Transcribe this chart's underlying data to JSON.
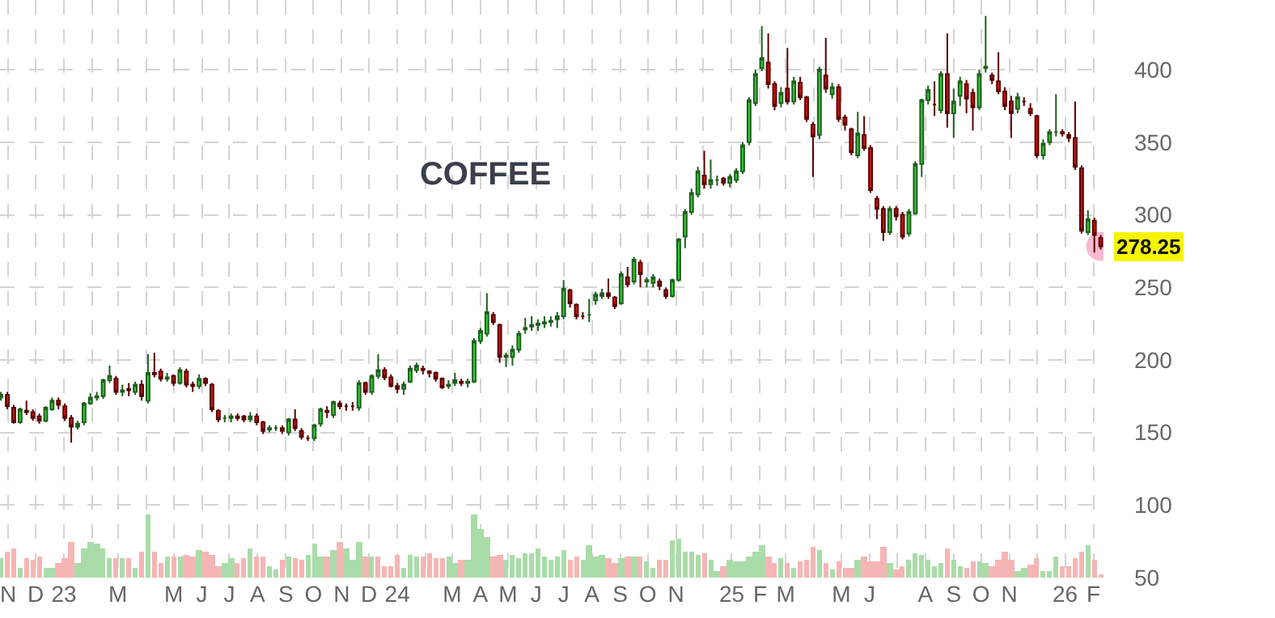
{
  "chart_data": {
    "type": "candlestick",
    "title": "COFFEE",
    "x": [
      "2022-10-24",
      "2022-10-31",
      "2022-11-07",
      "2022-11-14",
      "2022-11-21",
      "2022-11-28",
      "2022-12-05",
      "2022-12-12",
      "2022-12-19",
      "2022-12-26",
      "2023-01-02",
      "2023-01-09",
      "2023-01-16",
      "2023-01-23",
      "2023-01-30",
      "2023-02-06",
      "2023-02-13",
      "2023-02-20",
      "2023-02-27",
      "2023-03-06",
      "2023-03-13",
      "2023-03-20",
      "2023-03-27",
      "2023-04-03",
      "2023-04-10",
      "2023-04-17",
      "2023-04-24",
      "2023-05-01",
      "2023-05-08",
      "2023-05-15",
      "2023-05-22",
      "2023-05-29",
      "2023-06-05",
      "2023-06-12",
      "2023-06-19",
      "2023-06-26",
      "2023-07-03",
      "2023-07-10",
      "2023-07-17",
      "2023-07-24",
      "2023-07-31",
      "2023-08-07",
      "2023-08-14",
      "2023-08-21",
      "2023-08-28",
      "2023-09-04",
      "2023-09-11",
      "2023-09-18",
      "2023-09-25",
      "2023-10-02",
      "2023-10-09",
      "2023-10-16",
      "2023-10-23",
      "2023-10-30",
      "2023-11-06",
      "2023-11-13",
      "2023-11-20",
      "2023-11-27",
      "2023-12-04",
      "2023-12-11",
      "2023-12-18",
      "2023-12-25",
      "2024-01-01",
      "2024-01-08",
      "2024-01-15",
      "2024-01-22",
      "2024-01-29",
      "2024-02-05",
      "2024-02-12",
      "2024-02-19",
      "2024-02-26",
      "2024-03-04",
      "2024-03-11",
      "2024-03-18",
      "2024-03-25",
      "2024-04-01",
      "2024-04-08",
      "2024-04-15",
      "2024-04-22",
      "2024-04-29",
      "2024-05-06",
      "2024-05-13",
      "2024-05-20",
      "2024-05-27",
      "2024-06-03",
      "2024-06-10",
      "2024-06-17",
      "2024-06-24",
      "2024-07-01",
      "2024-07-08",
      "2024-07-15",
      "2024-07-22",
      "2024-07-29",
      "2024-08-05",
      "2024-08-12",
      "2024-08-19",
      "2024-08-26",
      "2024-09-02",
      "2024-09-09",
      "2024-09-16",
      "2024-09-23",
      "2024-09-30",
      "2024-10-07",
      "2024-10-14",
      "2024-10-21",
      "2024-10-28",
      "2024-11-04",
      "2024-11-11",
      "2024-11-18",
      "2024-11-25",
      "2024-12-02",
      "2024-12-09",
      "2024-12-16",
      "2024-12-23",
      "2024-12-30",
      "2025-01-06",
      "2025-01-13",
      "2025-01-20",
      "2025-01-27",
      "2025-02-03",
      "2025-02-10",
      "2025-02-17",
      "2025-02-24",
      "2025-03-03",
      "2025-03-10",
      "2025-03-17",
      "2025-03-24",
      "2025-03-31",
      "2025-04-07",
      "2025-04-14",
      "2025-04-21",
      "2025-04-28",
      "2025-05-05",
      "2025-05-12",
      "2025-05-19",
      "2025-05-26",
      "2025-06-02",
      "2025-06-09",
      "2025-06-16",
      "2025-06-23",
      "2025-06-30",
      "2025-07-07",
      "2025-07-14",
      "2025-07-21",
      "2025-07-28",
      "2025-08-04",
      "2025-08-11",
      "2025-08-18",
      "2025-08-25",
      "2025-09-01",
      "2025-09-08",
      "2025-09-15",
      "2025-09-22",
      "2025-09-29",
      "2025-10-06",
      "2025-10-13",
      "2025-10-20",
      "2025-10-27",
      "2025-11-03",
      "2025-11-10",
      "2025-11-17",
      "2025-11-24",
      "2025-12-01",
      "2025-12-08",
      "2025-12-15",
      "2025-12-22",
      "2025-12-29",
      "2026-01-05",
      "2026-01-12",
      "2026-01-19",
      "2026-01-26",
      "2026-02-02",
      "2026-02-09"
    ],
    "ohlc": [
      [
        174,
        178,
        172,
        176
      ],
      [
        176,
        178,
        166,
        168
      ],
      [
        167,
        169,
        156,
        157
      ],
      [
        157,
        167,
        156,
        166
      ],
      [
        165,
        172,
        162,
        164
      ],
      [
        164,
        166,
        158,
        160
      ],
      [
        161,
        163,
        156,
        158
      ],
      [
        158,
        168,
        157,
        167
      ],
      [
        166,
        174,
        165,
        172
      ],
      [
        172,
        174,
        166,
        169
      ],
      [
        168,
        170,
        158,
        160
      ],
      [
        160,
        162,
        143,
        154
      ],
      [
        154,
        158,
        152,
        156
      ],
      [
        157,
        171,
        155,
        170
      ],
      [
        170,
        177,
        169,
        174
      ],
      [
        174,
        178,
        172,
        175
      ],
      [
        175,
        187,
        173,
        186
      ],
      [
        186,
        196,
        184,
        189
      ],
      [
        187,
        189,
        176,
        178
      ],
      [
        178,
        183,
        175,
        179
      ],
      [
        180,
        184,
        175,
        179
      ],
      [
        178,
        185,
        176,
        183
      ],
      [
        183,
        186,
        172,
        175
      ],
      [
        172,
        204,
        170,
        191
      ],
      [
        191,
        205,
        188,
        190
      ],
      [
        192,
        194,
        185,
        187
      ],
      [
        187,
        191,
        185,
        188
      ],
      [
        189,
        190,
        182,
        184
      ],
      [
        184,
        195,
        183,
        193
      ],
      [
        192,
        194,
        181,
        183
      ],
      [
        183,
        185,
        178,
        182
      ],
      [
        182,
        190,
        180,
        187
      ],
      [
        187,
        188,
        182,
        184
      ],
      [
        183,
        184,
        164,
        166
      ],
      [
        165,
        166,
        157,
        159
      ],
      [
        160,
        162,
        157,
        160
      ],
      [
        160,
        163,
        157,
        161
      ],
      [
        161,
        163,
        158,
        160
      ],
      [
        161,
        162,
        157,
        159
      ],
      [
        159,
        164,
        157,
        161
      ],
      [
        161,
        163,
        155,
        157
      ],
      [
        157,
        158,
        149,
        151
      ],
      [
        152,
        155,
        150,
        153
      ],
      [
        153,
        155,
        151,
        153
      ],
      [
        153,
        155,
        149,
        151
      ],
      [
        150,
        160,
        148,
        159
      ],
      [
        159,
        166,
        151,
        153
      ],
      [
        151,
        153,
        145,
        147
      ],
      [
        146,
        148,
        144,
        146
      ],
      [
        146,
        156,
        144,
        155
      ],
      [
        156,
        167,
        154,
        166
      ],
      [
        165,
        168,
        160,
        164
      ],
      [
        162,
        172,
        160,
        171
      ],
      [
        170,
        172,
        166,
        168
      ],
      [
        168,
        170,
        165,
        168
      ],
      [
        168,
        171,
        165,
        168
      ],
      [
        167,
        186,
        165,
        184
      ],
      [
        184,
        185,
        176,
        178
      ],
      [
        178,
        190,
        176,
        189
      ],
      [
        189,
        204,
        187,
        193
      ],
      [
        193,
        195,
        186,
        188
      ],
      [
        188,
        190,
        181,
        182
      ],
      [
        182,
        184,
        177,
        180
      ],
      [
        180,
        185,
        176,
        183
      ],
      [
        185,
        196,
        184,
        194
      ],
      [
        193,
        198,
        191,
        196
      ],
      [
        194,
        196,
        190,
        193
      ],
      [
        192,
        193,
        188,
        191
      ],
      [
        191,
        192,
        185,
        187
      ],
      [
        187,
        188,
        180,
        181
      ],
      [
        182,
        186,
        180,
        183
      ],
      [
        184,
        191,
        182,
        186
      ],
      [
        185,
        187,
        182,
        184
      ],
      [
        184,
        187,
        181,
        185
      ],
      [
        185,
        215,
        184,
        213
      ],
      [
        213,
        222,
        211,
        220
      ],
      [
        218,
        246,
        216,
        233
      ],
      [
        231,
        233,
        224,
        226
      ],
      [
        224,
        225,
        198,
        202
      ],
      [
        202,
        205,
        195,
        203
      ],
      [
        202,
        210,
        196,
        207
      ],
      [
        207,
        220,
        205,
        218
      ],
      [
        221,
        229,
        218,
        222
      ],
      [
        223,
        230,
        220,
        224
      ],
      [
        224,
        228,
        220,
        225
      ],
      [
        225,
        230,
        222,
        226
      ],
      [
        226,
        230,
        223,
        227
      ],
      [
        228,
        233,
        222,
        230
      ],
      [
        230,
        255,
        228,
        249
      ],
      [
        248,
        249,
        236,
        239
      ],
      [
        238,
        239,
        228,
        230
      ],
      [
        230,
        233,
        228,
        230
      ],
      [
        231,
        242,
        226,
        231
      ],
      [
        241,
        247,
        238,
        245
      ],
      [
        244,
        249,
        242,
        246
      ],
      [
        246,
        256,
        242,
        244
      ],
      [
        243,
        244,
        235,
        237
      ],
      [
        239,
        261,
        238,
        259
      ],
      [
        257,
        264,
        250,
        252
      ],
      [
        254,
        271,
        252,
        269
      ],
      [
        267,
        269,
        250,
        259
      ],
      [
        254,
        257,
        250,
        255
      ],
      [
        253,
        259,
        250,
        257
      ],
      [
        254,
        256,
        248,
        251
      ],
      [
        248,
        250,
        242,
        244
      ],
      [
        244,
        256,
        243,
        255
      ],
      [
        255,
        284,
        254,
        283
      ],
      [
        285,
        304,
        277,
        302
      ],
      [
        302,
        318,
        300,
        315
      ],
      [
        314,
        333,
        312,
        330
      ],
      [
        327,
        344,
        318,
        321
      ],
      [
        321,
        338,
        318,
        324
      ],
      [
        324,
        327,
        320,
        324
      ],
      [
        325,
        326,
        320,
        322
      ],
      [
        322,
        328,
        319,
        326
      ],
      [
        324,
        332,
        322,
        330
      ],
      [
        330,
        350,
        328,
        348
      ],
      [
        350,
        381,
        348,
        379
      ],
      [
        377,
        400,
        375,
        397
      ],
      [
        401,
        430,
        399,
        408
      ],
      [
        405,
        425,
        387,
        390
      ],
      [
        390,
        392,
        372,
        375
      ],
      [
        377,
        388,
        374,
        384
      ],
      [
        387,
        415,
        376,
        378
      ],
      [
        378,
        395,
        376,
        392
      ],
      [
        391,
        395,
        379,
        381
      ],
      [
        381,
        382,
        364,
        366
      ],
      [
        362,
        364,
        326,
        354
      ],
      [
        355,
        402,
        352,
        400
      ],
      [
        396,
        422,
        384,
        387
      ],
      [
        383,
        391,
        380,
        388
      ],
      [
        388,
        390,
        364,
        366
      ],
      [
        367,
        369,
        358,
        362
      ],
      [
        359,
        360,
        341,
        343
      ],
      [
        341,
        371,
        339,
        356
      ],
      [
        355,
        368,
        344,
        346
      ],
      [
        346,
        348,
        315,
        317
      ],
      [
        311,
        313,
        297,
        304
      ],
      [
        304,
        306,
        282,
        288
      ],
      [
        288,
        306,
        286,
        304
      ],
      [
        304,
        306,
        296,
        299
      ],
      [
        300,
        302,
        283,
        285
      ],
      [
        287,
        304,
        285,
        302
      ],
      [
        301,
        337,
        300,
        335
      ],
      [
        335,
        380,
        326,
        379
      ],
      [
        379,
        389,
        376,
        386
      ],
      [
        376,
        392,
        368,
        376
      ],
      [
        372,
        399,
        370,
        397
      ],
      [
        397,
        425,
        360,
        370
      ],
      [
        370,
        387,
        353,
        378
      ],
      [
        382,
        395,
        375,
        392
      ],
      [
        390,
        393,
        370,
        380
      ],
      [
        384,
        387,
        358,
        374
      ],
      [
        374,
        400,
        372,
        397
      ],
      [
        401,
        437,
        398,
        402
      ],
      [
        396,
        398,
        390,
        393
      ],
      [
        392,
        412,
        383,
        385
      ],
      [
        385,
        388,
        372,
        375
      ],
      [
        378,
        382,
        353,
        370
      ],
      [
        373,
        384,
        370,
        381
      ],
      [
        378,
        381,
        375,
        378
      ],
      [
        373,
        377,
        368,
        370
      ],
      [
        368,
        369,
        339,
        341
      ],
      [
        341,
        352,
        338,
        349
      ],
      [
        350,
        359,
        348,
        357
      ],
      [
        357,
        383,
        354,
        357
      ],
      [
        357,
        359,
        354,
        356
      ],
      [
        355,
        357,
        350,
        353
      ],
      [
        353,
        378,
        331,
        333
      ],
      [
        332,
        334,
        287,
        289
      ],
      [
        288,
        303,
        286,
        297
      ],
      [
        296,
        298,
        274,
        286
      ],
      [
        284,
        286,
        276,
        278.25
      ]
    ],
    "series": [
      {
        "type": "bar",
        "values": [
          13,
          18,
          20,
          7,
          13,
          12,
          15,
          7,
          7,
          10,
          13,
          25,
          10,
          20,
          25,
          23,
          20,
          13,
          13,
          13,
          13,
          7,
          18,
          43,
          18,
          10,
          14,
          14,
          14,
          16,
          14,
          19,
          18,
          16,
          8,
          10,
          13,
          10,
          13,
          20,
          14,
          14,
          8,
          6,
          12,
          14,
          13,
          12,
          16,
          23,
          14,
          14,
          19,
          24,
          20,
          12,
          24,
          14,
          14,
          14,
          8,
          8,
          16,
          7,
          16,
          14,
          14,
          17,
          13,
          13,
          15,
          10,
          12,
          12,
          44,
          34,
          28,
          14,
          16,
          12,
          16,
          13,
          17,
          17,
          20,
          14,
          12,
          14,
          19,
          12,
          14,
          12,
          22,
          15,
          16,
          13,
          10,
          13,
          14,
          15,
          14,
          11,
          7,
          12,
          12,
          26,
          27,
          18,
          18,
          16,
          17,
          12,
          5,
          8,
          12,
          11,
          11,
          15,
          18,
          22,
          14,
          10,
          13,
          10,
          7,
          11,
          12,
          21,
          19,
          10,
          6,
          11,
          7,
          7,
          12,
          14,
          11,
          11,
          21,
          10,
          6,
          8,
          12,
          17,
          16,
          12,
          8,
          10,
          20,
          12,
          8,
          7,
          11,
          11,
          10,
          8,
          12,
          18,
          12,
          5,
          7,
          9,
          13,
          5,
          5,
          14,
          8,
          8,
          13,
          18,
          22,
          12,
          2
        ],
        "base": [
          50,
          50,
          50,
          50,
          50,
          50,
          50,
          50,
          50,
          50,
          50,
          50,
          50,
          50,
          50,
          50,
          50,
          50,
          50,
          50,
          50,
          50,
          50,
          50,
          50,
          50,
          50,
          50,
          50,
          50,
          50,
          50,
          50,
          50,
          50,
          50,
          50,
          50,
          50,
          50,
          50,
          50,
          50,
          50,
          50,
          50,
          50,
          50,
          50,
          50,
          50,
          50,
          50,
          50,
          50,
          50,
          50,
          50,
          50,
          50,
          50,
          50,
          50,
          50,
          50,
          50,
          50,
          50,
          50,
          50,
          50,
          50,
          50,
          50,
          50,
          50,
          50,
          50,
          50,
          50,
          50,
          50,
          50,
          50,
          50,
          50,
          50,
          50,
          50,
          50,
          50,
          50,
          50,
          50,
          50,
          50,
          50,
          50,
          50,
          50,
          50,
          50,
          50,
          50,
          50,
          50,
          50,
          50,
          50,
          50,
          50,
          50,
          50,
          50,
          50,
          50,
          50,
          50,
          50,
          50,
          50,
          50,
          50,
          50,
          50,
          50,
          50,
          50,
          50,
          50,
          50,
          50,
          50,
          50,
          50,
          50,
          50,
          50,
          50,
          50,
          50,
          50,
          50,
          50,
          50,
          50,
          50,
          50,
          50,
          50,
          50,
          50,
          50,
          50,
          50,
          50,
          50,
          50,
          50,
          50,
          50,
          50,
          50,
          50,
          50,
          50,
          50,
          50,
          50,
          50,
          50,
          50,
          50
        ],
        "colors": [
          "#a9dca9",
          "#f6b5b5",
          "#f6b5b5",
          "#a9dca9",
          "#f6b5b5",
          "#f6b5b5",
          "#f6b5b5",
          "#a9dca9",
          "#a9dca9",
          "#f6b5b5",
          "#f6b5b5",
          "#f6b5b5",
          "#a9dca9",
          "#a9dca9",
          "#a9dca9",
          "#a9dca9",
          "#a9dca9",
          "#a9dca9",
          "#f6b5b5",
          "#a9dca9",
          "#f6b5b5",
          "#a9dca9",
          "#f6b5b5",
          "#a9dca9",
          "#f6b5b5",
          "#f6b5b5",
          "#a9dca9",
          "#f6b5b5",
          "#a9dca9",
          "#f6b5b5",
          "#f6b5b5",
          "#a9dca9",
          "#f6b5b5",
          "#f6b5b5",
          "#f6b5b5",
          "#a9dca9",
          "#a9dca9",
          "#f6b5b5",
          "#f6b5b5",
          "#a9dca9",
          "#f6b5b5",
          "#f6b5b5",
          "#a9dca9",
          "#a9dca9",
          "#f6b5b5",
          "#a9dca9",
          "#f6b5b5",
          "#f6b5b5",
          "#a9dca9",
          "#a9dca9",
          "#a9dca9",
          "#f6b5b5",
          "#a9dca9",
          "#f6b5b5",
          "#a9dca9",
          "#a9dca9",
          "#a9dca9",
          "#f6b5b5",
          "#a9dca9",
          "#f6b5b5",
          "#f6b5b5",
          "#f6b5b5",
          "#f6b5b5",
          "#a9dca9",
          "#a9dca9",
          "#a9dca9",
          "#f6b5b5",
          "#f6b5b5",
          "#f6b5b5",
          "#f6b5b5",
          "#a9dca9",
          "#a9dca9",
          "#f6b5b5",
          "#a9dca9",
          "#a9dca9",
          "#a9dca9",
          "#a9dca9",
          "#f6b5b5",
          "#f6b5b5",
          "#a9dca9",
          "#a9dca9",
          "#a9dca9",
          "#a9dca9",
          "#a9dca9",
          "#a9dca9",
          "#a9dca9",
          "#a9dca9",
          "#a9dca9",
          "#a9dca9",
          "#f6b5b5",
          "#f6b5b5",
          "#a9dca9",
          "#a9dca9",
          "#a9dca9",
          "#a9dca9",
          "#f6b5b5",
          "#f6b5b5",
          "#a9dca9",
          "#f6b5b5",
          "#a9dca9",
          "#f6b5b5",
          "#a9dca9",
          "#a9dca9",
          "#f6b5b5",
          "#f6b5b5",
          "#a9dca9",
          "#a9dca9",
          "#a9dca9",
          "#a9dca9",
          "#a9dca9",
          "#f6b5b5",
          "#a9dca9",
          "#a9dca9",
          "#f6b5b5",
          "#a9dca9",
          "#a9dca9",
          "#a9dca9",
          "#a9dca9",
          "#a9dca9",
          "#a9dca9",
          "#f6b5b5",
          "#f6b5b5",
          "#a9dca9",
          "#f6b5b5",
          "#a9dca9",
          "#f6b5b5",
          "#f6b5b5",
          "#f6b5b5",
          "#a9dca9",
          "#f6b5b5",
          "#a9dca9",
          "#f6b5b5",
          "#f6b5b5",
          "#f6b5b5",
          "#a9dca9",
          "#f6b5b5",
          "#f6b5b5",
          "#f6b5b5",
          "#f6b5b5",
          "#a9dca9",
          "#f6b5b5",
          "#f6b5b5",
          "#a9dca9",
          "#a9dca9",
          "#a9dca9",
          "#a9dca9",
          "#a9dca9",
          "#a9dca9",
          "#f6b5b5",
          "#a9dca9",
          "#a9dca9",
          "#f6b5b5",
          "#f6b5b5",
          "#a9dca9",
          "#a9dca9",
          "#f6b5b5",
          "#f6b5b5",
          "#f6b5b5",
          "#f6b5b5",
          "#a9dca9",
          "#a9dca9",
          "#f6b5b5",
          "#f6b5b5",
          "#a9dca9",
          "#a9dca9",
          "#a9dca9",
          "#f6b5b5",
          "#f6b5b5",
          "#f6b5b5",
          "#f6b5b5",
          "#a9dca9",
          "#f6b5b5",
          "#f6b5b5"
        ]
      }
    ],
    "xlim": [
      "2022-10-23",
      "2026-02-12"
    ],
    "ylim": [
      50,
      448
    ],
    "xticks": [
      {
        "value": "2022-11-01",
        "label": "N"
      },
      {
        "value": "2022-12-01",
        "label": "D"
      },
      {
        "value": "2023-01-01",
        "label": "23"
      },
      {
        "value": "2023-02-01",
        "label": null
      },
      {
        "value": "2023-03-01",
        "label": "M"
      },
      {
        "value": "2023-04-01",
        "label": null
      },
      {
        "value": "2023-05-01",
        "label": "M"
      },
      {
        "value": "2023-06-01",
        "label": "J"
      },
      {
        "value": "2023-07-01",
        "label": "J"
      },
      {
        "value": "2023-08-01",
        "label": "A"
      },
      {
        "value": "2023-09-01",
        "label": "S"
      },
      {
        "value": "2023-10-01",
        "label": "O"
      },
      {
        "value": "2023-11-01",
        "label": "N"
      },
      {
        "value": "2023-12-01",
        "label": "D"
      },
      {
        "value": "2024-01-01",
        "label": "24"
      },
      {
        "value": "2024-02-01",
        "label": null
      },
      {
        "value": "2024-03-01",
        "label": "M"
      },
      {
        "value": "2024-04-01",
        "label": "A"
      },
      {
        "value": "2024-05-01",
        "label": "M"
      },
      {
        "value": "2024-06-01",
        "label": "J"
      },
      {
        "value": "2024-07-01",
        "label": "J"
      },
      {
        "value": "2024-08-01",
        "label": "A"
      },
      {
        "value": "2024-09-01",
        "label": "S"
      },
      {
        "value": "2024-10-01",
        "label": "O"
      },
      {
        "value": "2024-11-01",
        "label": "N"
      },
      {
        "value": "2024-12-01",
        "label": null
      },
      {
        "value": "2025-01-01",
        "label": "25"
      },
      {
        "value": "2025-02-01",
        "label": "F"
      },
      {
        "value": "2025-03-01",
        "label": "M"
      },
      {
        "value": "2025-04-01",
        "label": null
      },
      {
        "value": "2025-05-01",
        "label": "M"
      },
      {
        "value": "2025-06-01",
        "label": "J"
      },
      {
        "value": "2025-07-01",
        "label": null
      },
      {
        "value": "2025-08-01",
        "label": "A"
      },
      {
        "value": "2025-09-01",
        "label": "S"
      },
      {
        "value": "2025-10-01",
        "label": "O"
      },
      {
        "value": "2025-11-01",
        "label": "N"
      },
      {
        "value": "2025-12-01",
        "label": null
      },
      {
        "value": "2026-01-01",
        "label": "26"
      },
      {
        "value": "2026-02-01",
        "label": "F"
      }
    ],
    "yticks": [
      50,
      100,
      150,
      200,
      250,
      300,
      350,
      400
    ],
    "grid": true,
    "annotations": [
      {
        "text": "278.25",
        "x": "2026-02-09",
        "y": 278.25
      }
    ]
  }
}
